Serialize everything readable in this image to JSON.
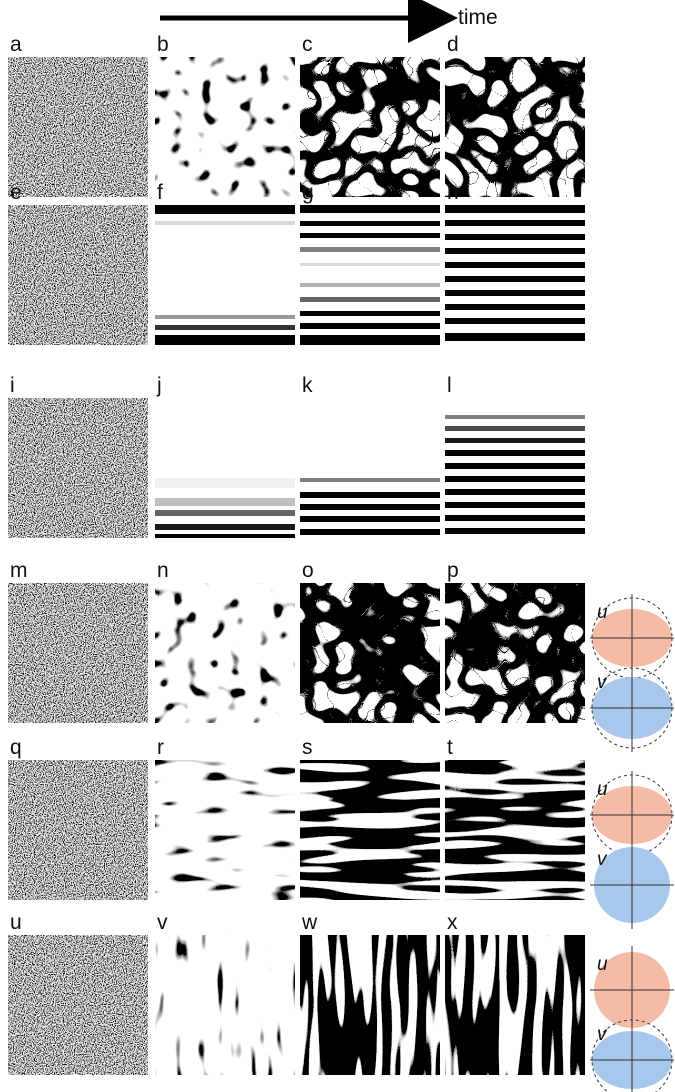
{
  "time_label": "time",
  "rows": [
    {
      "panels": [
        "a",
        "b",
        "c",
        "d"
      ]
    },
    {
      "panels": [
        "e",
        "f",
        "g",
        "h"
      ]
    },
    {
      "panels": [
        "i",
        "j",
        "k",
        "l"
      ]
    },
    {
      "panels": [
        "m",
        "n",
        "o",
        "p"
      ],
      "u": "u",
      "v": "v"
    },
    {
      "panels": [
        "q",
        "r",
        "s",
        "t"
      ],
      "u": "u",
      "v": "v"
    },
    {
      "panels": [
        "u",
        "v",
        "w",
        "x"
      ],
      "u": "u",
      "v": "v"
    }
  ]
}
